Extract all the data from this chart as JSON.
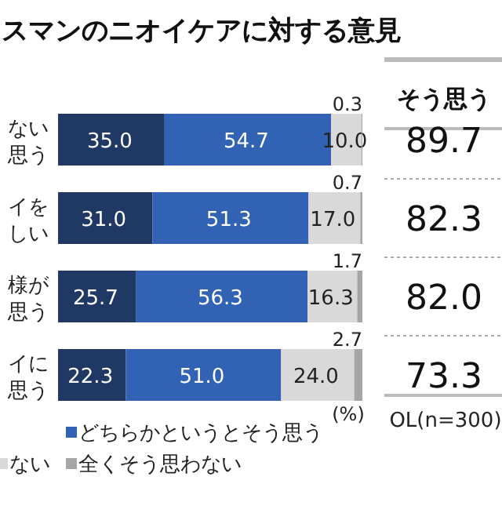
{
  "chart_data": {
    "type": "bar",
    "orientation": "horizontal",
    "stacked": true,
    "title": "スマンのニオイケアに対する意見",
    "categories": [
      "ない思う",
      "イをしい",
      "様が思う",
      "イに思う"
    ],
    "xlim": [
      0,
      100
    ],
    "series": [
      {
        "color": "#1f3864",
        "values": [
          35.0,
          31.0,
          25.7,
          22.3
        ],
        "value_labels": [
          "35.0",
          "31.0",
          "25.7",
          "22.3"
        ]
      },
      {
        "name": "どちらかというとそう思う",
        "color": "#3262b4",
        "values": [
          54.7,
          51.3,
          56.3,
          51.0
        ],
        "value_labels": [
          "54.7",
          "51.3",
          "56.3",
          "51.0"
        ]
      },
      {
        "name": "ない",
        "color": "#d9d9d9",
        "values": [
          10.0,
          17.0,
          16.3,
          24.0
        ],
        "value_labels": [
          "10.0",
          "17.0",
          "16.3",
          "24.0"
        ]
      },
      {
        "name": "全くそう思わない",
        "color": "#a6a6a6",
        "values": [
          0.3,
          0.7,
          1.7,
          2.7
        ],
        "value_labels": [
          "0.3",
          "0.7",
          "1.7",
          "2.7"
        ]
      }
    ],
    "annotations": [
      "そう思う",
      "89.7",
      "82.3",
      "82.0",
      "73.3",
      "(%)",
      "OL(n=300)"
    ],
    "legend": "bottom"
  }
}
